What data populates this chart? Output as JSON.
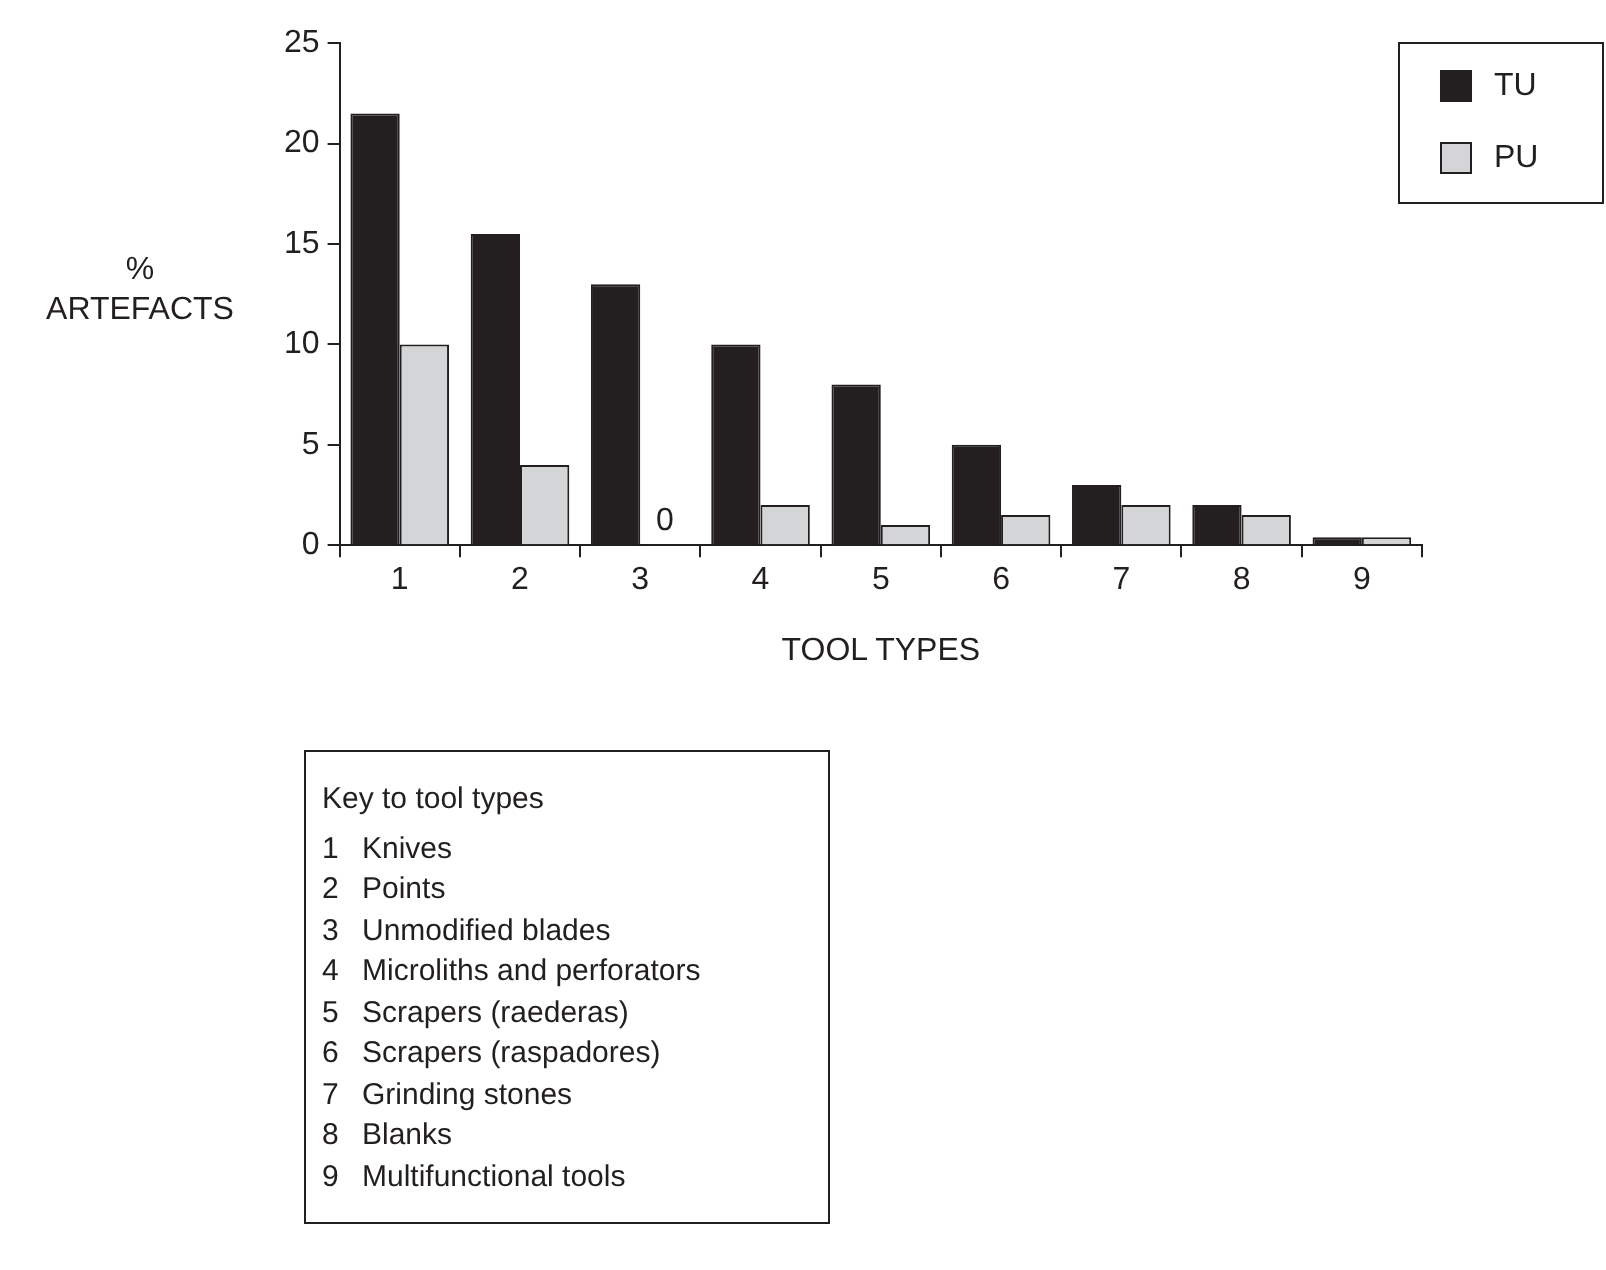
{
  "chart_data": {
    "type": "bar",
    "ylabel": "% ARTEFACTS",
    "xlabel": "TOOL TYPES",
    "categories": [
      "1",
      "2",
      "3",
      "4",
      "5",
      "6",
      "7",
      "8",
      "9"
    ],
    "series": [
      {
        "name": "TU",
        "color": "#231f20",
        "values": [
          21.5,
          15.5,
          13,
          10,
          8,
          5,
          3,
          2,
          0.4
        ]
      },
      {
        "name": "PU",
        "color": "#d4d5d7",
        "values": [
          10,
          4,
          0,
          2,
          1,
          1.5,
          2,
          1.5,
          0.4
        ],
        "value_labels": [
          null,
          null,
          "0",
          null,
          null,
          null,
          null,
          null,
          null
        ]
      }
    ],
    "ylim": [
      0,
      25
    ],
    "yticks": [
      0,
      5,
      10,
      15,
      20,
      25
    ],
    "grid": false,
    "legend": "top right",
    "annotations": [
      "Key to tool types",
      "1 Knives",
      "2 Points",
      "3 Unmodified blades",
      "4 Microliths and perforators",
      "5 Scrapers (raederas)",
      "6 Scrapers (raspadores)",
      "7 Grinding stones",
      "8 Blanks",
      "9 Multifunctional tools"
    ]
  }
}
